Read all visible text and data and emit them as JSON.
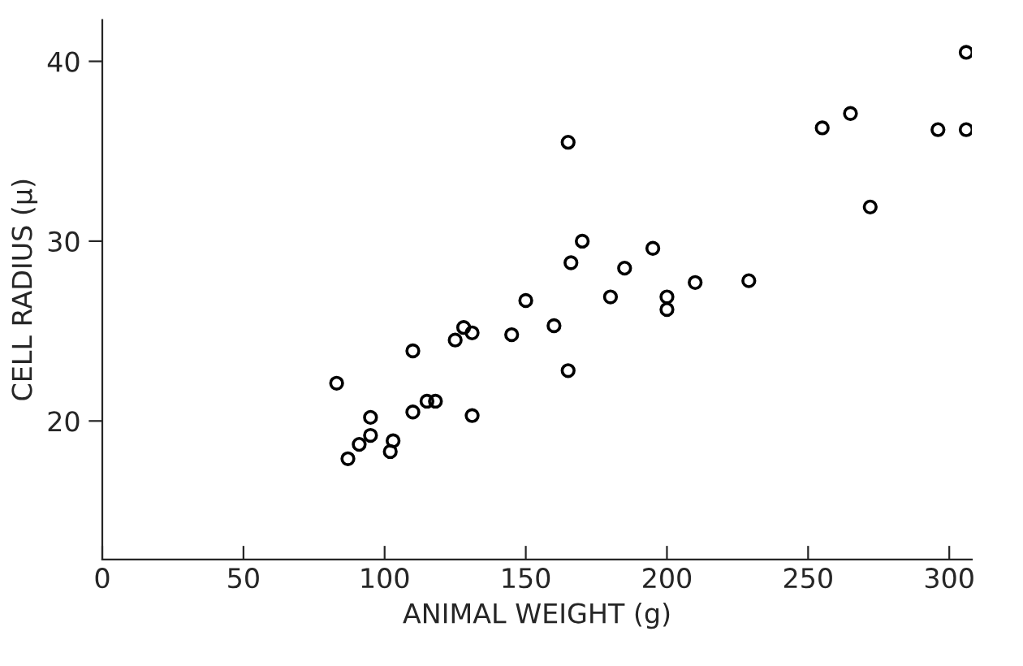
{
  "chart_data": {
    "type": "scatter",
    "xlabel": "ANIMAL WEIGHT (g)",
    "ylabel": "CELL RADIUS (μ)",
    "xlim": [
      0,
      308
    ],
    "ylim": [
      12.3,
      42.3
    ],
    "xticks": [
      0,
      50,
      100,
      150,
      200,
      250,
      300
    ],
    "yticks": [
      20,
      30,
      40
    ],
    "marker": "circle",
    "grid": false,
    "series": [
      {
        "color": "#000000",
        "x": [
          83,
          87,
          91,
          95,
          95,
          103,
          102,
          110,
          110,
          115,
          118,
          125,
          128,
          131,
          131,
          145,
          150,
          160,
          165,
          165,
          166,
          170,
          180,
          185,
          195,
          200,
          200,
          210,
          229,
          255,
          265,
          272,
          296,
          306,
          306
        ],
        "values": [
          22.1,
          17.9,
          18.7,
          20.2,
          19.2,
          18.9,
          18.3,
          23.9,
          20.5,
          21.1,
          21.1,
          24.5,
          25.2,
          24.9,
          20.3,
          24.8,
          26.7,
          25.3,
          22.8,
          35.5,
          28.8,
          30.0,
          26.9,
          28.5,
          29.6,
          26.9,
          26.2,
          27.7,
          27.8,
          36.3,
          37.1,
          31.9,
          36.2,
          36.2,
          40.5
        ]
      }
    ]
  }
}
